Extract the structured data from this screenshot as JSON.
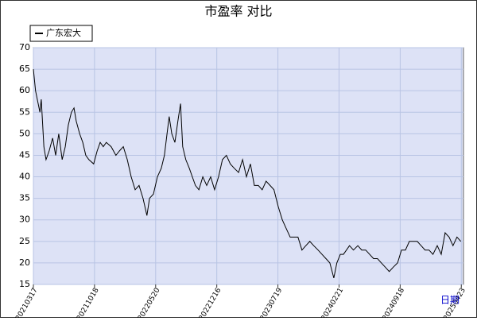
{
  "chart_data": {
    "type": "line",
    "title": "市盈率 对比",
    "x_label": "日期",
    "xlim": [
      0,
      985
    ],
    "ylim": [
      15,
      70
    ],
    "yticks": [
      15,
      20,
      25,
      30,
      35,
      40,
      45,
      50,
      55,
      60,
      65,
      70
    ],
    "xticks": [
      {
        "value": 0,
        "label": "20210317"
      },
      {
        "value": 140,
        "label": "20211018"
      },
      {
        "value": 280,
        "label": "20220520"
      },
      {
        "value": 420,
        "label": "20221216"
      },
      {
        "value": 560,
        "label": "20230719"
      },
      {
        "value": 700,
        "label": "20240221"
      },
      {
        "value": 840,
        "label": "20240918"
      },
      {
        "value": 980,
        "label": "20250423"
      }
    ],
    "grid": true,
    "legend": "top-left",
    "series": [
      {
        "name": "广东宏大",
        "color": "#000000",
        "x": [
          0,
          5,
          11,
          15,
          18,
          24,
          29,
          36,
          44,
          51,
          58,
          66,
          73,
          80,
          87,
          93,
          98,
          106,
          113,
          120,
          127,
          138,
          146,
          153,
          160,
          167,
          178,
          189,
          197,
          206,
          215,
          224,
          233,
          242,
          251,
          260,
          266,
          275,
          284,
          293,
          300,
          306,
          311,
          317,
          324,
          331,
          337,
          342,
          349,
          357,
          364,
          371,
          379,
          388,
          397,
          406,
          415,
          424,
          433,
          442,
          451,
          460,
          470,
          479,
          488,
          497,
          506,
          515,
          524,
          533,
          542,
          551,
          561,
          570,
          579,
          588,
          597,
          606,
          615,
          624,
          633,
          642,
          652,
          661,
          670,
          679,
          688,
          695,
          703,
          710,
          717,
          724,
          733,
          743,
          752,
          761,
          770,
          779,
          788,
          797,
          806,
          815,
          824,
          834,
          843,
          852,
          861,
          870,
          879,
          888,
          897,
          906,
          915,
          925,
          934,
          943,
          952,
          961,
          970,
          979
        ],
        "values": [
          65,
          60,
          57,
          55,
          58,
          47,
          44,
          46,
          49,
          45,
          50,
          44,
          47,
          52,
          55,
          56,
          53,
          50,
          48,
          45,
          44,
          43,
          46,
          48,
          47,
          48,
          47,
          45,
          46,
          47,
          44,
          40,
          37,
          38,
          35,
          31,
          35,
          36,
          40,
          42,
          45,
          50,
          54,
          50,
          48,
          53,
          57,
          47,
          44,
          42,
          40,
          38,
          37,
          40,
          38,
          40,
          37,
          40,
          44,
          45,
          43,
          42,
          41,
          44,
          40,
          43,
          38,
          38,
          37,
          39,
          38,
          37,
          33,
          30,
          28,
          26,
          26,
          26,
          23,
          24,
          25,
          24,
          23,
          22,
          21,
          20,
          16.5,
          20,
          22,
          22,
          23,
          24,
          23,
          24,
          23,
          23,
          22,
          21,
          21,
          20,
          19,
          18,
          19,
          20,
          23,
          23,
          25,
          25,
          25,
          24,
          23,
          23,
          22,
          24,
          22,
          27,
          26,
          24,
          26,
          25
        ]
      }
    ]
  }
}
